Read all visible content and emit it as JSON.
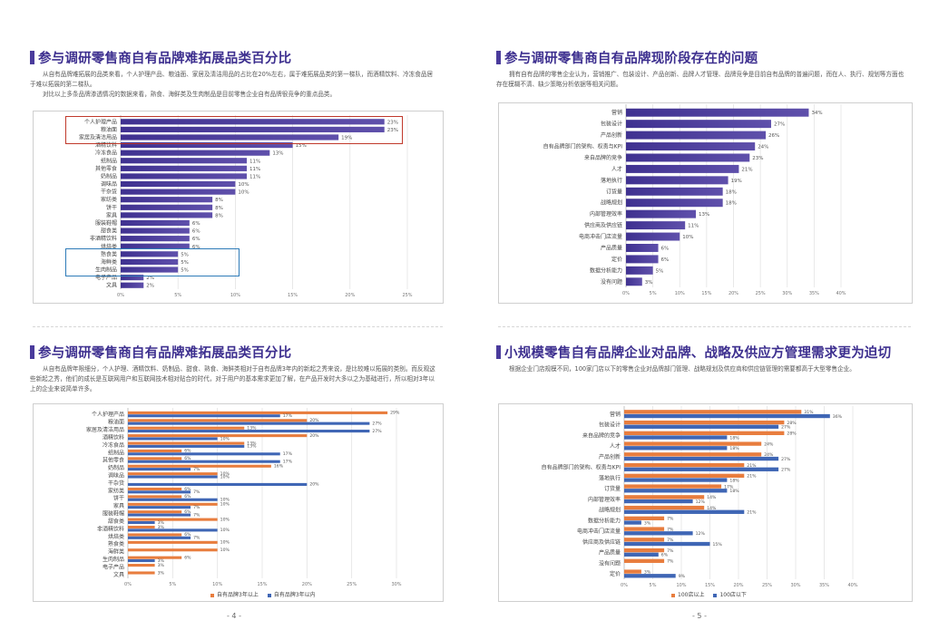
{
  "colors": {
    "accent": "#3d2f8f",
    "bar_purple": "#5546a3",
    "bar_orange": "#e87d3e",
    "bar_blue": "#3f66b5",
    "highlight_red": "#c0392b",
    "highlight_blue": "#2e7bb8"
  },
  "pages": {
    "left": "- 4 -",
    "right": "- 5 -"
  },
  "panels": {
    "tl": {
      "title": "参与调研零售商自有品牌难拓展品类百分比",
      "paragraphs": [
        "从自有品牌难拓展的品类来看，个人护理产品、粮油面、家居及清洁用品的占比在20%左右，属于难拓展品类的第一梯队，而酒精饮料、冷冻食品居于难以拓展的第二梯队。",
        "对比以上多条品牌渗透情况的数据来看，熟食、海鲜类及生肉制品是目前零售企业自有品牌很竞争的重点品类。"
      ]
    },
    "tr": {
      "title": "参与调研零售商自有品牌现阶段存在的问题",
      "paragraphs": [
        "拥有自有品牌的零售企业认为，营销推广、包装设计、产品创新、品牌人才管理、品牌竞争是目前自有品牌的普遍问题，而在人、执行、规划等方面也存在模糊不清、缺少策略分析依据等相关问题。"
      ]
    },
    "bl": {
      "title": "参与调研零售商自有品牌难拓展品类百分比",
      "paragraphs": [
        "从自有品牌年限细分，个人护理、酒精饮料、奶制品、甜食、熟食、海鲜类相对于自有品牌3年内的新起之秀来说，是比较难以拓展的类别。而反观这些新起之秀，他们的成长是互联网用户和互联网技术相对贴合的时代，对于用户的基本需求更加了解，在产品开发时大多以之为基础进行，所以相对3年以上的企业来说简单许多。"
      ]
    },
    "br": {
      "title": "小规模零售自有品牌企业对品牌、战略及供应方管理需求更为迫切",
      "paragraphs": [
        "根据企业门店规模不同，100家门店以下的零售企业对品牌部门管理、战略规划及供应商和供应链管理的需要都高于大型零售企业。"
      ]
    }
  },
  "chart_data": [
    {
      "id": "tl",
      "type": "bar",
      "orientation": "horizontal",
      "title": "",
      "categories": [
        "个人护理产品",
        "粮油面",
        "家居及清洁用品",
        "酒精饮料",
        "冷冻食品",
        "纸制品",
        "其他零食",
        "奶制品",
        "调味品",
        "干杂货",
        "家纺类",
        "饼干",
        "家具",
        "服装鞋帽",
        "甜食类",
        "非酒精饮料",
        "烘焙类",
        "熟食类",
        "海鲜类",
        "生肉制品",
        "电子产品",
        "文具"
      ],
      "values": [
        23,
        23,
        19,
        15,
        13,
        11,
        11,
        11,
        10,
        10,
        8,
        8,
        8,
        6,
        6,
        6,
        6,
        5,
        5,
        5,
        2,
        2
      ],
      "value_labels": [
        "23%",
        "23%",
        "19%",
        "15%",
        "13%",
        "11%",
        "11%",
        "11%",
        "10%",
        "10%",
        "8%",
        "8%",
        "8%",
        "6%",
        "6%",
        "6%",
        "6%",
        "5%",
        "5%",
        "5%",
        "2%",
        "2%"
      ],
      "xlim": [
        0,
        25
      ],
      "ticks": [
        "0%",
        "5%",
        "10%",
        "15%",
        "20%",
        "25%"
      ],
      "grid": true,
      "highlights": [
        {
          "color": "red",
          "categories": [
            "个人护理产品",
            "粮油面",
            "家居及清洁用品"
          ]
        },
        {
          "color": "blue",
          "categories": [
            "熟食类",
            "海鲜类",
            "生肉制品"
          ]
        }
      ]
    },
    {
      "id": "tr",
      "type": "bar",
      "orientation": "horizontal",
      "title": "",
      "categories": [
        "营销",
        "包装设计",
        "产品创新",
        "自有品牌部门的架构、权责与KPI",
        "来自品牌的竞争",
        "人才",
        "落地执行",
        "订货量",
        "战略规划",
        "内部管理效率",
        "供应商及供应链",
        "电商冲击门店流量",
        "产品质量",
        "定价",
        "数据分析能力",
        "没有问题"
      ],
      "values": [
        34,
        27,
        26,
        24,
        23,
        21,
        19,
        18,
        18,
        13,
        11,
        10,
        6,
        6,
        5,
        3
      ],
      "value_labels": [
        "34%",
        "27%",
        "26%",
        "24%",
        "23%",
        "21%",
        "19%",
        "18%",
        "18%",
        "13%",
        "11%",
        "10%",
        "6%",
        "6%",
        "5%",
        "3%"
      ],
      "xlim": [
        0,
        40
      ],
      "ticks": [
        "0%",
        "5%",
        "10%",
        "15%",
        "20%",
        "25%",
        "30%",
        "35%",
        "40%"
      ],
      "grid": true
    },
    {
      "id": "bl",
      "type": "bar",
      "orientation": "horizontal",
      "title": "",
      "categories": [
        "个人护理产品",
        "粮油面",
        "家居及清洁用品",
        "酒精饮料",
        "冷冻食品",
        "纸制品",
        "其他零食",
        "奶制品",
        "调味品",
        "干杂货",
        "家纺类",
        "饼干",
        "家具",
        "服装鞋帽",
        "甜食类",
        "非酒精饮料",
        "烘焙类",
        "熟食类",
        "海鲜类",
        "生肉制品",
        "电子产品",
        "文具"
      ],
      "series": [
        {
          "name": "自有品牌3年以上",
          "color": "orange",
          "values": [
            29,
            20,
            13,
            20,
            13,
            6,
            6,
            16,
            10,
            0,
            6,
            6,
            10,
            6,
            10,
            3,
            6,
            10,
            10,
            6,
            3,
            3
          ],
          "value_labels": [
            "29%",
            "20%",
            "13%",
            "20%",
            "13%",
            "6%",
            "6%",
            "16%",
            "10%",
            "",
            "6%",
            "6%",
            "10%",
            "6%",
            "10%",
            "3%",
            "6%",
            "10%",
            "10%",
            "6%",
            "3%",
            "3%"
          ]
        },
        {
          "name": "自有品牌3年以内",
          "color": "blue",
          "values": [
            17,
            27,
            27,
            10,
            13,
            17,
            17,
            7,
            10,
            20,
            7,
            10,
            7,
            7,
            3,
            10,
            7,
            0,
            0,
            3,
            0,
            0
          ],
          "value_labels": [
            "17%",
            "27%",
            "27%",
            "10%",
            "13%",
            "17%",
            "17%",
            "7%",
            "10%",
            "20%",
            "7%",
            "10%",
            "7%",
            "7%",
            "3%",
            "10%",
            "7%",
            "",
            "",
            "3%",
            "",
            ""
          ]
        }
      ],
      "xlim": [
        0,
        30
      ],
      "ticks": [
        "0%",
        "5%",
        "10%",
        "15%",
        "20%",
        "25%",
        "30%"
      ],
      "grid": true,
      "legend": "bottom"
    },
    {
      "id": "br",
      "type": "bar",
      "orientation": "horizontal",
      "title": "",
      "categories": [
        "营销",
        "包装设计",
        "来自品牌的竞争",
        "人才",
        "产品创新",
        "自有品牌部门的架构、权责与KPI",
        "落地执行",
        "订货量",
        "内部管理效率",
        "战略规划",
        "数据分析能力",
        "电商冲击门店流量",
        "供应商及供应链",
        "产品质量",
        "没有问题",
        "定价"
      ],
      "series": [
        {
          "name": "100店以上",
          "color": "orange",
          "values": [
            31,
            28,
            28,
            24,
            24,
            21,
            21,
            17,
            14,
            14,
            7,
            7,
            7,
            7,
            7,
            3
          ],
          "value_labels": [
            "31%",
            "28%",
            "28%",
            "24%",
            "24%",
            "21%",
            "21%",
            "17%",
            "14%",
            "14%",
            "7%",
            "7%",
            "7%",
            "7%",
            "7%",
            "3%"
          ]
        },
        {
          "name": "100店以下",
          "color": "blue",
          "values": [
            36,
            27,
            18,
            18,
            27,
            27,
            18,
            18,
            12,
            21,
            3,
            12,
            15,
            6,
            0,
            9
          ],
          "value_labels": [
            "36%",
            "27%",
            "18%",
            "18%",
            "27%",
            "27%",
            "18%",
            "18%",
            "12%",
            "21%",
            "3%",
            "12%",
            "15%",
            "6%",
            "",
            "9%"
          ]
        }
      ],
      "xlim": [
        0,
        40
      ],
      "ticks": [
        "0%",
        "5%",
        "10%",
        "15%",
        "20%",
        "25%",
        "30%",
        "35%",
        "40%"
      ],
      "grid": true,
      "legend": "bottom"
    }
  ]
}
